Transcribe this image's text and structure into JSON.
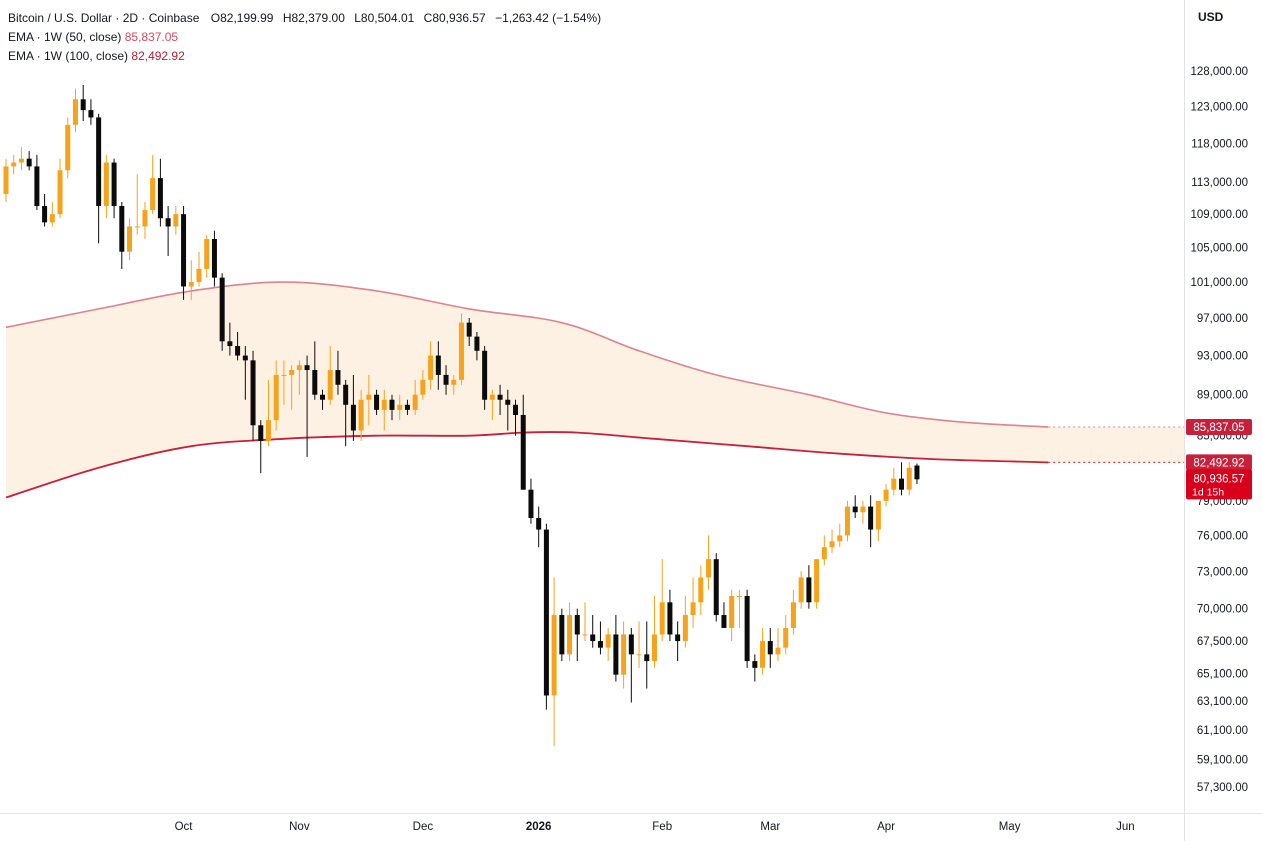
{
  "legend": {
    "symbol": "Bitcoin / U.S. Dollar · 2D · Coinbase",
    "open_label": "O",
    "open": "82,199.99",
    "high_label": "H",
    "high": "82,379.00",
    "low_label": "L",
    "low": "80,504.01",
    "close_label": "C",
    "close": "80,936.57",
    "change": "−1,263.42 (−1.54%)",
    "ema50_label": "EMA · 1W (50, close)",
    "ema50_value": "85,837.05",
    "ema100_label": "EMA · 1W (100, close)",
    "ema100_value": "82,492.92"
  },
  "currency": "USD",
  "colors": {
    "up": "#f7a21b",
    "down": "#0b0b0b",
    "ema50": "#e0828e",
    "ema100": "#c8203a",
    "band": "#fdf1e4",
    "price_badge": "#d9001b"
  },
  "chart_data": {
    "type": "candlestick",
    "y_axis": {
      "ticks": [
        {
          "value": 128000,
          "label": "128,000.00"
        },
        {
          "value": 123000,
          "label": "123,000.00"
        },
        {
          "value": 118000,
          "label": "118,000.00"
        },
        {
          "value": 113000,
          "label": "113,000.00"
        },
        {
          "value": 109000,
          "label": "109,000.00"
        },
        {
          "value": 105000,
          "label": "105,000.00"
        },
        {
          "value": 101000,
          "label": "101,000.00"
        },
        {
          "value": 97000,
          "label": "97,000.00"
        },
        {
          "value": 93000,
          "label": "93,000.00"
        },
        {
          "value": 89000,
          "label": "89,000.00"
        },
        {
          "value": 85000,
          "label": "85,000.00"
        },
        {
          "value": 79000,
          "label": "79,000.00"
        },
        {
          "value": 76000,
          "label": "76,000.00"
        },
        {
          "value": 73000,
          "label": "73,000.00"
        },
        {
          "value": 70000,
          "label": "70,000.00"
        },
        {
          "value": 67500,
          "label": "67,500.00"
        },
        {
          "value": 65100,
          "label": "65,100.00"
        },
        {
          "value": 63100,
          "label": "63,100.00"
        },
        {
          "value": 61100,
          "label": "61,100.00"
        },
        {
          "value": 59100,
          "label": "59,100.00"
        },
        {
          "value": 57300,
          "label": "57,300.00"
        }
      ],
      "scale": "log"
    },
    "x_axis": {
      "labels": [
        {
          "bar": 23,
          "label": "Oct",
          "bold": false
        },
        {
          "bar": 38,
          "label": "Nov",
          "bold": false
        },
        {
          "bar": 54,
          "label": "Dec",
          "bold": false
        },
        {
          "bar": 69,
          "label": "2026",
          "bold": true
        },
        {
          "bar": 85,
          "label": "Feb",
          "bold": false
        },
        {
          "bar": 99,
          "label": "Mar",
          "bold": false
        },
        {
          "bar": 114,
          "label": "Apr",
          "bold": false
        },
        {
          "bar": 130,
          "label": "May",
          "bold": false
        },
        {
          "bar": 145,
          "label": "Jun",
          "bold": false
        }
      ]
    },
    "candles": [
      [
        111500,
        116000,
        110500,
        115000
      ],
      [
        115000,
        116500,
        114000,
        115500
      ],
      [
        115500,
        117500,
        114500,
        116000
      ],
      [
        116000,
        117000,
        114500,
        115000
      ],
      [
        115000,
        116500,
        109500,
        110000
      ],
      [
        110000,
        111500,
        107500,
        108000
      ],
      [
        108000,
        110500,
        107500,
        109000
      ],
      [
        109000,
        116000,
        108500,
        114500
      ],
      [
        114500,
        121500,
        113500,
        120500
      ],
      [
        120500,
        125500,
        119500,
        124000
      ],
      [
        124000,
        126000,
        121000,
        122500
      ],
      [
        122500,
        124000,
        120500,
        121500
      ],
      [
        121500,
        122000,
        105500,
        110000
      ],
      [
        110000,
        116500,
        108500,
        115500
      ],
      [
        115500,
        116000,
        108500,
        110000
      ],
      [
        110000,
        110500,
        102500,
        104500
      ],
      [
        104500,
        108500,
        103500,
        107500
      ],
      [
        107500,
        114000,
        106500,
        107500
      ],
      [
        107500,
        110500,
        106000,
        109500
      ],
      [
        109500,
        116500,
        109000,
        113500
      ],
      [
        113500,
        116000,
        107500,
        108500
      ],
      [
        108500,
        110000,
        104000,
        107500
      ],
      [
        107500,
        110000,
        106500,
        109000
      ],
      [
        109000,
        110000,
        99000,
        100500
      ],
      [
        100500,
        103500,
        99000,
        101000
      ],
      [
        101000,
        104500,
        100500,
        102500
      ],
      [
        102500,
        106500,
        101500,
        106000
      ],
      [
        106000,
        107000,
        100500,
        101500
      ],
      [
        101500,
        102000,
        93500,
        94500
      ],
      [
        94500,
        96500,
        93000,
        94000
      ],
      [
        94000,
        95500,
        92500,
        93000
      ],
      [
        93000,
        94000,
        88500,
        92500
      ],
      [
        92500,
        93500,
        84500,
        86000
      ],
      [
        86000,
        86500,
        81500,
        84500
      ],
      [
        84500,
        90500,
        84000,
        86500
      ],
      [
        86500,
        92500,
        85500,
        91000
      ],
      [
        91000,
        92500,
        88000,
        91000
      ],
      [
        91000,
        92000,
        87500,
        91500
      ],
      [
        91500,
        92500,
        89000,
        92000
      ],
      [
        92000,
        93000,
        83000,
        91500
      ],
      [
        91500,
        94500,
        88500,
        89000
      ],
      [
        89000,
        89500,
        87500,
        88500
      ],
      [
        88500,
        94000,
        88000,
        91500
      ],
      [
        91500,
        93500,
        89000,
        90000
      ],
      [
        90000,
        90500,
        84000,
        88000
      ],
      [
        88000,
        91000,
        84500,
        85500
      ],
      [
        85500,
        89500,
        84500,
        88500
      ],
      [
        88500,
        91000,
        86000,
        89000
      ],
      [
        89000,
        89500,
        87000,
        87500
      ],
      [
        87500,
        89500,
        85500,
        88500
      ],
      [
        88500,
        89000,
        86500,
        87500
      ],
      [
        87500,
        89000,
        86500,
        88000
      ],
      [
        88000,
        88500,
        87000,
        87500
      ],
      [
        87500,
        90500,
        87000,
        89000
      ],
      [
        89000,
        91500,
        88500,
        90500
      ],
      [
        90500,
        94500,
        89500,
        93000
      ],
      [
        93000,
        94500,
        89500,
        91000
      ],
      [
        91000,
        92000,
        89000,
        90000
      ],
      [
        90000,
        91000,
        89000,
        90500
      ],
      [
        90500,
        97500,
        90000,
        96500
      ],
      [
        96500,
        97000,
        94000,
        95000
      ],
      [
        95000,
        95500,
        92500,
        93500
      ],
      [
        93500,
        94000,
        87500,
        88500
      ],
      [
        88500,
        89500,
        86500,
        89000
      ],
      [
        89000,
        90000,
        87000,
        88500
      ],
      [
        88500,
        89500,
        85500,
        88000
      ],
      [
        88000,
        88500,
        85000,
        87000
      ],
      [
        87000,
        89000,
        80000,
        80000
      ],
      [
        80000,
        81000,
        77000,
        77500
      ],
      [
        77500,
        78500,
        75000,
        76500
      ],
      [
        76500,
        77000,
        62500,
        63500
      ],
      [
        63500,
        72500,
        60000,
        69500
      ],
      [
        69500,
        70000,
        66000,
        66500
      ],
      [
        66500,
        70500,
        66000,
        69500
      ],
      [
        69500,
        70000,
        66000,
        68000
      ],
      [
        68000,
        70500,
        67500,
        68000
      ],
      [
        68000,
        69500,
        67000,
        67500
      ],
      [
        67500,
        69000,
        66500,
        67000
      ],
      [
        67000,
        68500,
        66000,
        68000
      ],
      [
        68000,
        69500,
        64500,
        65000
      ],
      [
        65000,
        69000,
        64000,
        68000
      ],
      [
        68000,
        68500,
        63000,
        66500
      ],
      [
        66500,
        69000,
        65500,
        66500
      ],
      [
        66500,
        69000,
        64000,
        66000
      ],
      [
        66000,
        71000,
        65500,
        68000
      ],
      [
        68000,
        74000,
        67500,
        70500
      ],
      [
        70500,
        71500,
        67500,
        68000
      ],
      [
        68000,
        69000,
        66000,
        67500
      ],
      [
        67500,
        71000,
        67000,
        69500
      ],
      [
        69500,
        72500,
        68500,
        70500
      ],
      [
        70500,
        73500,
        69500,
        72500
      ],
      [
        72500,
        76000,
        71500,
        74000
      ],
      [
        74000,
        74500,
        69000,
        69500
      ],
      [
        69500,
        70500,
        68500,
        68500
      ],
      [
        68500,
        71500,
        67500,
        71000
      ],
      [
        71000,
        71500,
        68500,
        71000
      ],
      [
        71000,
        71500,
        65500,
        66000
      ],
      [
        66000,
        66500,
        64500,
        65500
      ],
      [
        65500,
        68500,
        65000,
        67500
      ],
      [
        67500,
        68500,
        65500,
        66500
      ],
      [
        66500,
        68500,
        66000,
        67000
      ],
      [
        67000,
        69500,
        66500,
        68500
      ],
      [
        68500,
        71500,
        68000,
        70500
      ],
      [
        70500,
        73000,
        70000,
        72500
      ],
      [
        72500,
        73500,
        70000,
        70500
      ],
      [
        70500,
        74000,
        70000,
        74000
      ],
      [
        74000,
        76000,
        73500,
        75000
      ],
      [
        75000,
        76500,
        74500,
        75500
      ],
      [
        75500,
        77000,
        75000,
        76000
      ],
      [
        76000,
        79000,
        75500,
        78500
      ],
      [
        78500,
        79500,
        77500,
        78000
      ],
      [
        78000,
        79000,
        77000,
        78500
      ],
      [
        78500,
        79500,
        75000,
        76500
      ],
      [
        76500,
        79000,
        75500,
        79000
      ],
      [
        79000,
        80500,
        78500,
        80000
      ],
      [
        80000,
        82000,
        79500,
        81000
      ],
      [
        81000,
        82500,
        79500,
        80000
      ],
      [
        80000,
        82500,
        79500,
        82000
      ],
      [
        82200,
        82379,
        80504,
        80937
      ]
    ],
    "ema50": [
      [
        0,
        96000
      ],
      [
        12,
        98000
      ],
      [
        24,
        100000
      ],
      [
        36,
        101000
      ],
      [
        48,
        100000
      ],
      [
        60,
        98000
      ],
      [
        72,
        96500
      ],
      [
        82,
        93500
      ],
      [
        92,
        91000
      ],
      [
        104,
        89000
      ],
      [
        114,
        87200
      ],
      [
        124,
        86300
      ],
      [
        135,
        85837
      ]
    ],
    "ema100": [
      [
        0,
        79300
      ],
      [
        12,
        82000
      ],
      [
        24,
        84000
      ],
      [
        36,
        84700
      ],
      [
        48,
        85000
      ],
      [
        60,
        85000
      ],
      [
        67,
        85300
      ],
      [
        74,
        85300
      ],
      [
        84,
        84700
      ],
      [
        96,
        84000
      ],
      [
        108,
        83300
      ],
      [
        120,
        82800
      ],
      [
        135,
        82493
      ]
    ],
    "price_labels": [
      {
        "value": 85837.05,
        "label": "85,837.05",
        "kind": "ema50"
      },
      {
        "value": 82492.92,
        "label": "82,492.92",
        "kind": "ema100"
      },
      {
        "value": 80936.57,
        "label": "80,936.57",
        "sub": "1d 15h",
        "kind": "price"
      }
    ]
  }
}
